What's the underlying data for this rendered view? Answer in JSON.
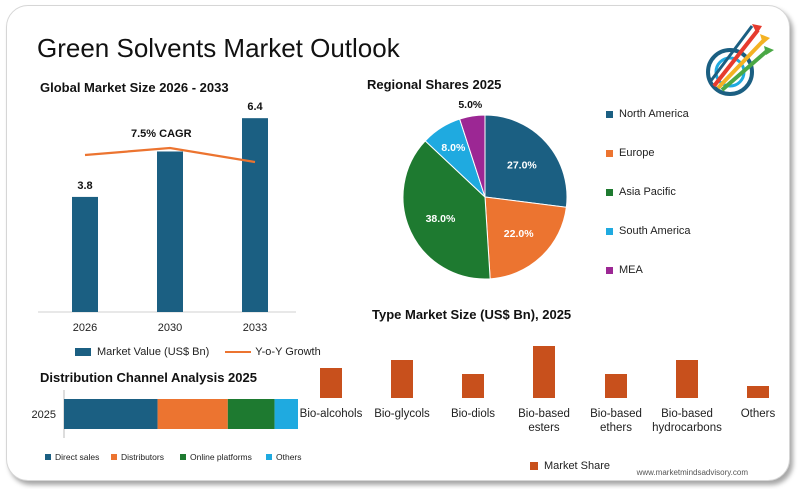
{
  "page": {
    "title": "Green Solvents Market Outlook",
    "footer": "www.marketmindsadvisory.com"
  },
  "colors": {
    "navy": "#1b5f82",
    "orange": "#ec7430",
    "green": "#1e7a30",
    "cyan": "#1faae0",
    "magenta": "#9c2794",
    "rust": "#c8501c"
  },
  "icons": {
    "logo": "arrows-target-logo-icon"
  },
  "chart_data": [
    {
      "type": "bar",
      "title": "Global Market Size 2026 - 2033",
      "categories": [
        "2026",
        "2030",
        "2033"
      ],
      "series": [
        {
          "name": "Market Value (US$ Bn)",
          "values": [
            3.8,
            5.3,
            6.4
          ],
          "value_labels": [
            "3.8",
            "",
            "6.4"
          ]
        },
        {
          "name": "Y-o-Y Growth",
          "type": "line",
          "values": [
            7.5,
            7.7,
            7.3
          ]
        }
      ],
      "annotation": "7.5% CAGR",
      "ylim": [
        0,
        7
      ],
      "grid": false,
      "legend": "bottom"
    },
    {
      "type": "pie",
      "title": "Regional Shares 2025",
      "labels": [
        "North America",
        "Europe",
        "Asia Pacific",
        "South America",
        "MEA"
      ],
      "values": [
        27.0,
        22.0,
        38.0,
        8.0,
        5.0
      ],
      "value_labels": [
        "27.0%",
        "22.0%",
        "38.0%",
        "8.0%",
        "5.0%"
      ],
      "legend": "right"
    },
    {
      "type": "bar",
      "title": "Type Market Size (US$ Bn), 2025",
      "categories": [
        "Bio-alcohols",
        "Bio-glycols",
        "Bio-diols",
        "Bio-based esters",
        "Bio-based ethers",
        "Bio-based hydrocarbons",
        "Others"
      ],
      "category_lines": [
        [
          "Bio-alcohols"
        ],
        [
          "Bio-glycols"
        ],
        [
          "Bio-diols"
        ],
        [
          "Bio-based",
          "esters"
        ],
        [
          "Bio-based",
          "ethers"
        ],
        [
          "Bio-based",
          "hydrocarbons"
        ],
        [
          "Others"
        ]
      ],
      "series": [
        {
          "name": "Market Share",
          "values": [
            15,
            19,
            12,
            26,
            12,
            19,
            6
          ]
        }
      ],
      "legend": "bottom"
    },
    {
      "type": "bar",
      "orientation": "horizontal-stacked",
      "title": "Distribution Channel Analysis 2025",
      "categories": [
        "2025"
      ],
      "series": [
        {
          "name": "Direct sales",
          "values": [
            40
          ]
        },
        {
          "name": "Distributors",
          "values": [
            30
          ]
        },
        {
          "name": "Online platforms",
          "values": [
            20
          ]
        },
        {
          "name": "Others",
          "values": [
            10
          ]
        }
      ],
      "legend": "bottom"
    }
  ]
}
